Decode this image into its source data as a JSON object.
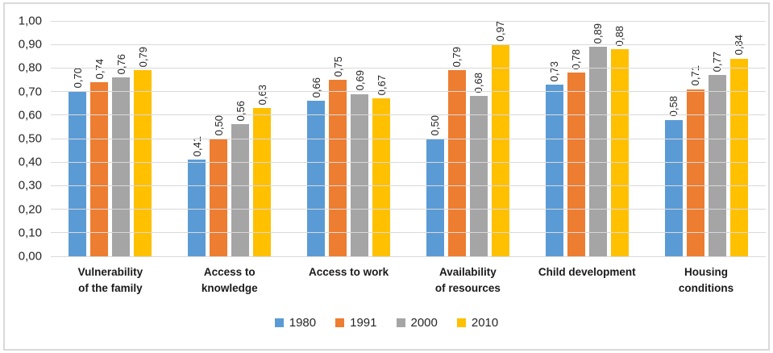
{
  "chart_data": {
    "type": "bar",
    "title": "",
    "xlabel": "",
    "ylabel": "",
    "grid": true,
    "decimal_separator": ",",
    "categories": [
      "Vulnerability\nof the family",
      "Access to\nknowledge",
      "Access to work",
      "Availability\nof resources",
      "Child development",
      "Housing\nconditions"
    ],
    "series": [
      {
        "name": "1980",
        "color": "#5B9BD5",
        "values": [
          0.7,
          0.41,
          0.66,
          0.5,
          0.73,
          0.58
        ]
      },
      {
        "name": "1991",
        "color": "#ED7D31",
        "values": [
          0.74,
          0.5,
          0.75,
          0.79,
          0.78,
          0.71
        ]
      },
      {
        "name": "2000",
        "color": "#A5A5A5",
        "values": [
          0.76,
          0.56,
          0.69,
          0.68,
          0.89,
          0.77
        ]
      },
      {
        "name": "2010",
        "color": "#FFC000",
        "values": [
          0.79,
          0.63,
          0.67,
          0.97,
          0.88,
          0.84
        ]
      }
    ],
    "data_labels": [
      [
        "0,70",
        "0,41",
        "0,66",
        "0,50",
        "0,73",
        "0,58"
      ],
      [
        "0,74",
        "0,50",
        "0,75",
        "0,79",
        "0,78",
        "0,71"
      ],
      [
        "0,76",
        "0,56",
        "0,69",
        "0,68",
        "0,89",
        "0,77"
      ],
      [
        "0,79",
        "0,63",
        "0,67",
        "0,97",
        "0,88",
        "0,84"
      ]
    ],
    "y_axis": {
      "min": 0.0,
      "max": 1.0,
      "ticks": [
        "1,00",
        "0,90",
        "0,80",
        "0,70",
        "0,60",
        "0,50",
        "0,40",
        "0,30",
        "0,20",
        "0,10",
        "0,00"
      ]
    },
    "legend": {
      "position": "bottom",
      "entries": [
        "1980",
        "1991",
        "2000",
        "2010"
      ]
    },
    "style": {
      "gridline_color": "#d9d9d9",
      "frame_color": "#d9d9d9",
      "text_color": "#262626"
    }
  }
}
